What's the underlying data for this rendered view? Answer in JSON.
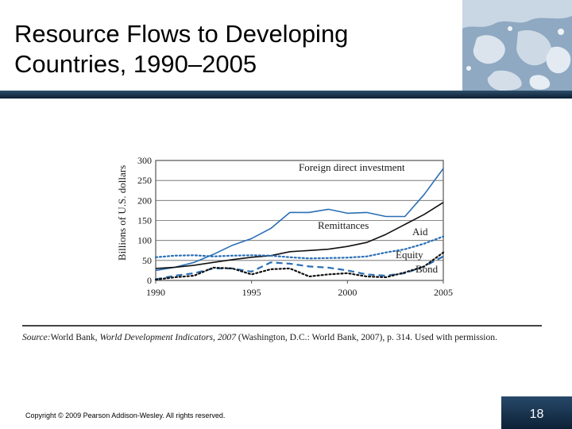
{
  "slide": {
    "title_line1": "Resource Flows to Developing",
    "title_line2": "Countries, 1990–2005",
    "source_label": "Source:",
    "source_part1": "World Bank, ",
    "source_title": "World Development Indicators, 2007",
    "source_part2": " (Washington, D.C.: World Bank, 2007), p. 314. Used with permission.",
    "copyright": "Copyright © 2009 Pearson Addison-Wesley. All rights reserved.",
    "page_number": "18",
    "colors": {
      "header_bar": "#1a3550",
      "blue_series": "#2a6fb5",
      "dark_series": "#111111"
    }
  },
  "chart_data": {
    "type": "line",
    "ylabel": "Billions of U.S. dollars",
    "xlabel": "",
    "xlim": [
      1990,
      2005
    ],
    "ylim": [
      0,
      300
    ],
    "xticks": [
      1990,
      1995,
      2000,
      2005
    ],
    "yticks": [
      0,
      50,
      100,
      150,
      200,
      250,
      300
    ],
    "grid": "horizontal",
    "x": [
      1990,
      1991,
      1992,
      1993,
      1994,
      1995,
      1996,
      1997,
      1998,
      1999,
      2000,
      2001,
      2002,
      2003,
      2004,
      2005
    ],
    "series": [
      {
        "name": "Foreign direct investment",
        "color": "#2a6fb5",
        "style": "solid",
        "values": [
          25,
          33,
          45,
          65,
          88,
          105,
          130,
          170,
          170,
          178,
          168,
          170,
          160,
          160,
          215,
          280
        ]
      },
      {
        "name": "Remittances",
        "color": "#111111",
        "style": "solid",
        "values": [
          30,
          33,
          38,
          45,
          52,
          58,
          62,
          72,
          75,
          78,
          85,
          95,
          115,
          140,
          165,
          195
        ]
      },
      {
        "name": "Aid",
        "color": "#2a6fb5",
        "style": "dotted",
        "values": [
          58,
          62,
          63,
          60,
          62,
          63,
          62,
          58,
          55,
          56,
          57,
          60,
          70,
          78,
          92,
          110
        ]
      },
      {
        "name": "Equity",
        "color": "#2a6fb5",
        "style": "dashed",
        "values": [
          3,
          12,
          18,
          30,
          30,
          22,
          45,
          42,
          35,
          32,
          25,
          15,
          12,
          18,
          35,
          60
        ]
      },
      {
        "name": "Bond",
        "color": "#111111",
        "style": "dotted",
        "values": [
          2,
          8,
          12,
          32,
          30,
          15,
          28,
          30,
          10,
          15,
          18,
          10,
          8,
          20,
          35,
          70
        ]
      }
    ]
  }
}
